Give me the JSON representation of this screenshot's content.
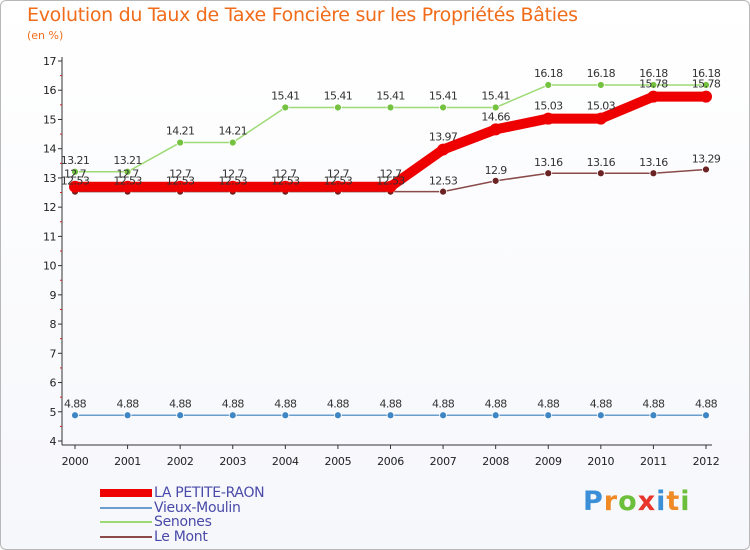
{
  "title": "Evolution du Taux de Taxe Foncière sur les Propriétés Bâties",
  "subtitle": "(en %)",
  "chart_data": {
    "type": "line",
    "title": "Evolution du Taux de Taxe Foncière sur les Propriétés Bâties",
    "ylabel": "(en %)",
    "xlabel": "",
    "x": [
      "2000",
      "2001",
      "2002",
      "2003",
      "2004",
      "2005",
      "2006",
      "2007",
      "2008",
      "2009",
      "2010",
      "2011",
      "2012"
    ],
    "ylim": [
      4,
      17
    ],
    "yticks": [
      "4",
      "5",
      "6",
      "7",
      "8",
      "9",
      "10",
      "11",
      "12",
      "13",
      "14",
      "15",
      "16",
      "17"
    ],
    "grid": false,
    "legend_position": "bottom-left",
    "series": [
      {
        "name": "LA PETITE-RAON",
        "color": "#ee0000",
        "emphasis": true,
        "values": [
          12.7,
          12.7,
          12.7,
          12.7,
          12.7,
          12.7,
          12.7,
          13.97,
          14.66,
          15.03,
          15.03,
          15.78,
          15.78
        ],
        "labels": [
          "12.7",
          "12.7",
          "12.7",
          "12.7",
          "12.7",
          "12.7",
          "12.7",
          "13.97",
          "14.66",
          "15.03",
          "15.03",
          "15.78",
          "15.78"
        ]
      },
      {
        "name": "Vieux-Moulin",
        "color": "#6a9fcd",
        "marker": "#3f86c4",
        "values": [
          4.88,
          4.88,
          4.88,
          4.88,
          4.88,
          4.88,
          4.88,
          4.88,
          4.88,
          4.88,
          4.88,
          4.88,
          4.88
        ],
        "labels": [
          "4.88",
          "4.88",
          "4.88",
          "4.88",
          "4.88",
          "4.88",
          "4.88",
          "4.88",
          "4.88",
          "4.88",
          "4.88",
          "4.88",
          "4.88"
        ]
      },
      {
        "name": "Senones",
        "color": "#9dda74",
        "marker": "#74c23f",
        "values": [
          13.21,
          13.21,
          14.21,
          14.21,
          15.41,
          15.41,
          15.41,
          15.41,
          15.41,
          16.18,
          16.18,
          16.18,
          16.18
        ],
        "labels": [
          "13.21",
          "13.21",
          "14.21",
          "14.21",
          "15.41",
          "15.41",
          "15.41",
          "15.41",
          "15.41",
          "16.18",
          "16.18",
          "16.18",
          "16.18"
        ]
      },
      {
        "name": "Le Mont",
        "color": "#8a4a4a",
        "marker": "#6b2222",
        "values": [
          12.53,
          12.53,
          12.53,
          12.53,
          12.53,
          12.53,
          12.53,
          12.53,
          12.9,
          13.16,
          13.16,
          13.16,
          13.29
        ],
        "labels": [
          "12.53",
          "12.53",
          "12.53",
          "12.53",
          "12.53",
          "12.53",
          "12.53",
          "12.53",
          "12.9",
          "13.16",
          "13.16",
          "13.16",
          "13.29"
        ]
      }
    ]
  },
  "logo": {
    "letters": [
      "P",
      "r",
      "o",
      "x",
      "i",
      "t",
      "i"
    ],
    "colors": [
      "#3b8fd6",
      "#f08a24",
      "#6cbf3a",
      "#e8362c",
      "#3b8fd6",
      "#f08a24",
      "#6cbf3a"
    ]
  }
}
